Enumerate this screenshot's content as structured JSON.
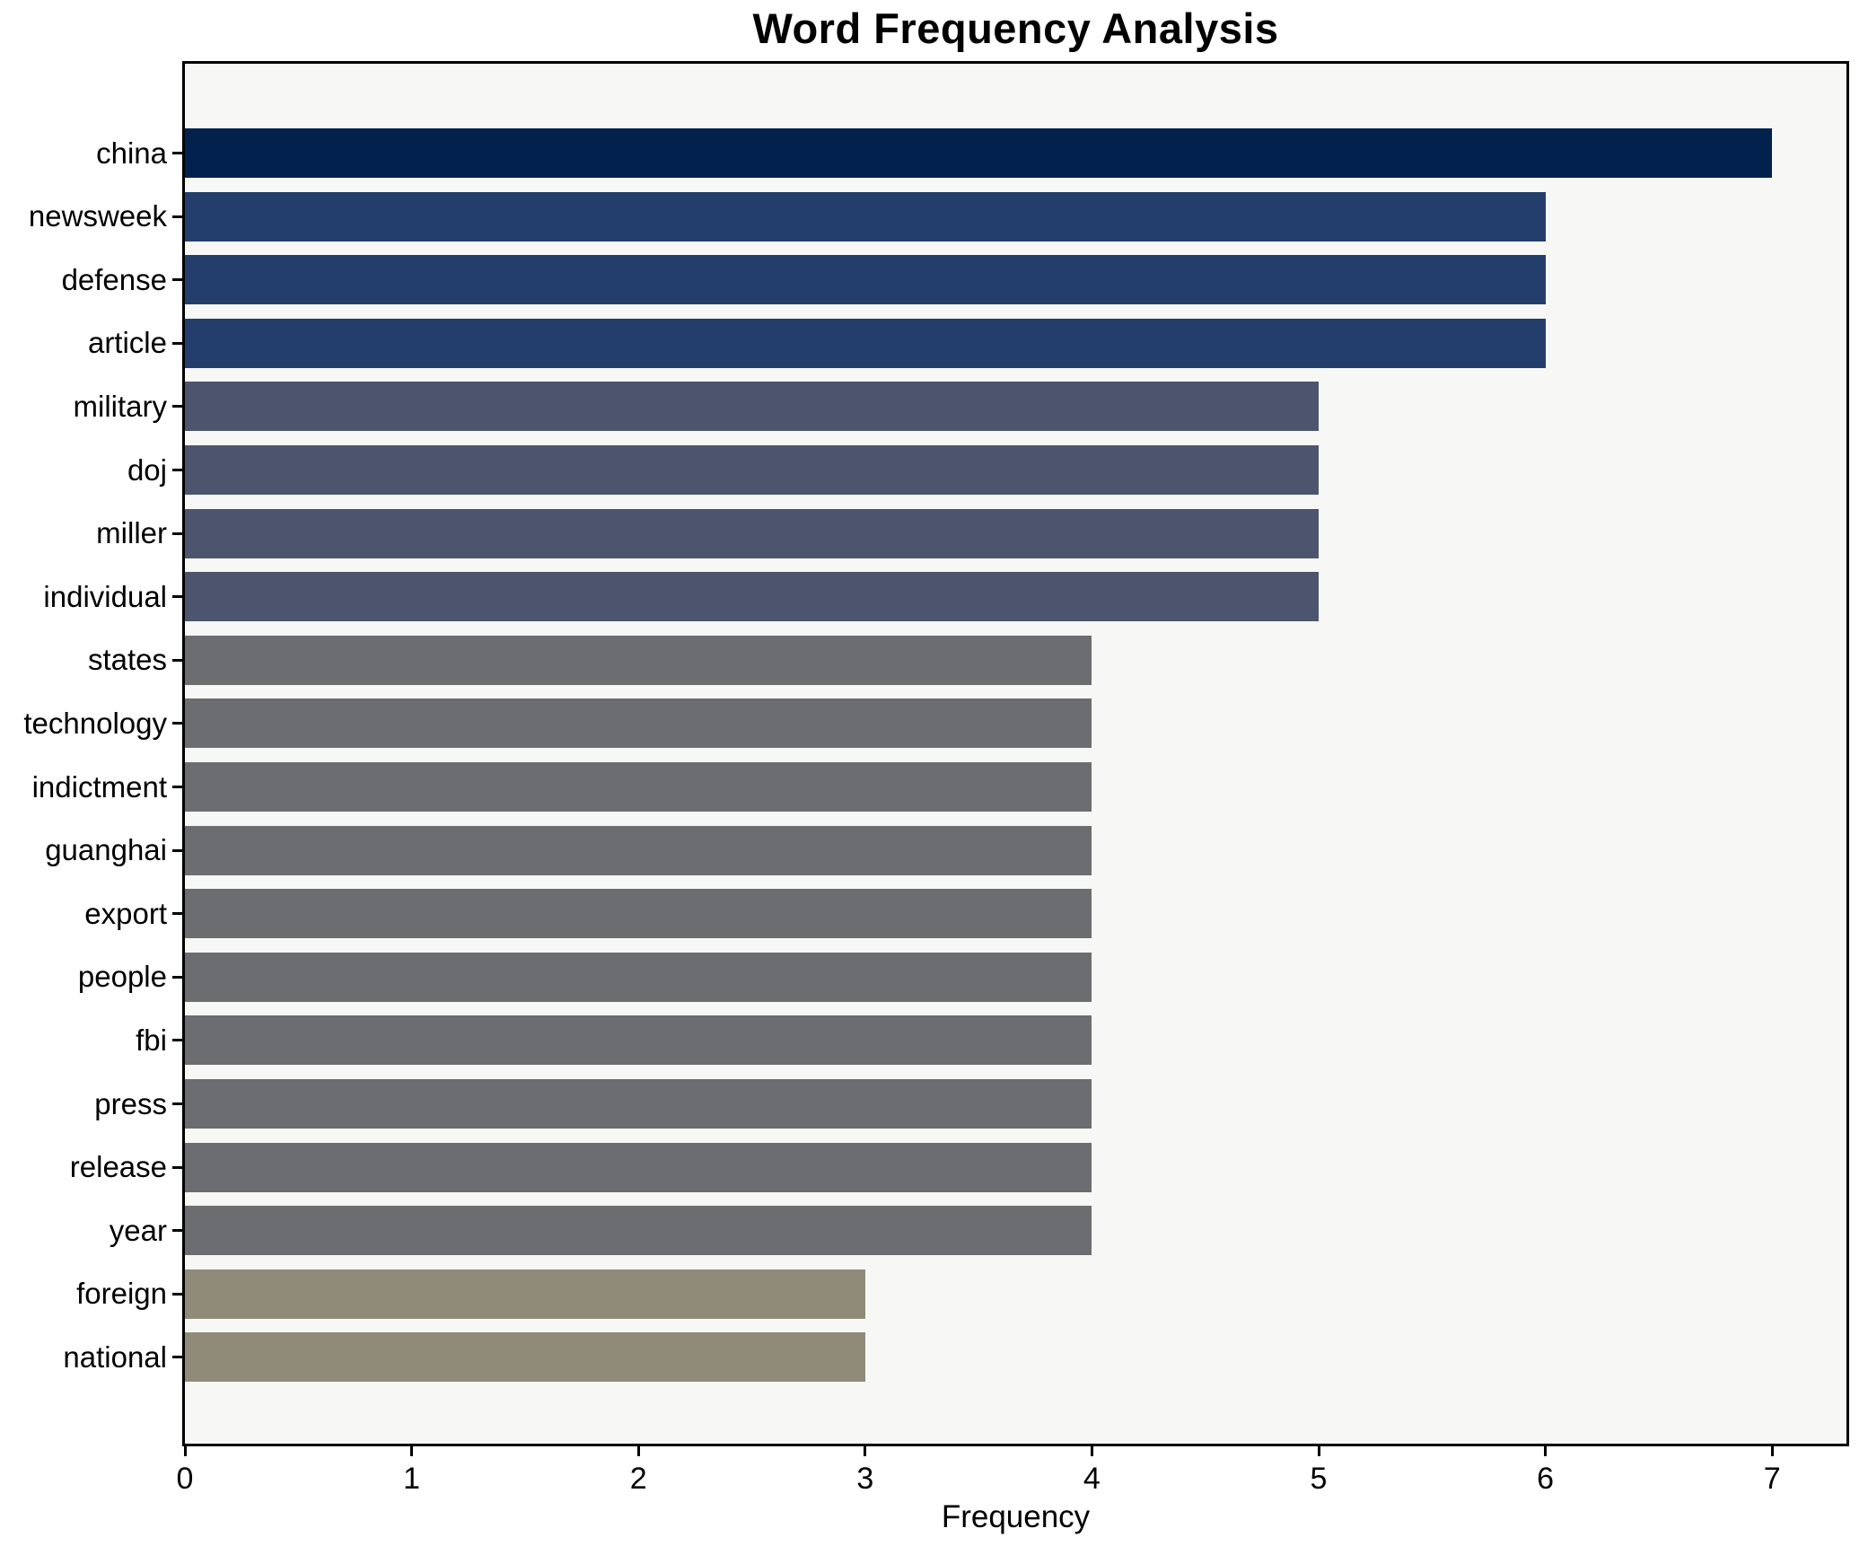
{
  "chart_data": {
    "type": "bar",
    "orientation": "horizontal",
    "title": "Word Frequency Analysis",
    "xlabel": "Frequency",
    "ylabel": "",
    "categories": [
      "china",
      "newsweek",
      "defense",
      "article",
      "military",
      "doj",
      "miller",
      "individual",
      "states",
      "technology",
      "indictment",
      "guanghai",
      "export",
      "people",
      "fbi",
      "press",
      "release",
      "year",
      "foreign",
      "national"
    ],
    "values": [
      7,
      6,
      6,
      6,
      5,
      5,
      5,
      5,
      4,
      4,
      4,
      4,
      4,
      4,
      4,
      4,
      4,
      4,
      3,
      3
    ],
    "bar_colors": [
      "#02214d",
      "#243e6c",
      "#243e6c",
      "#243e6c",
      "#4d556e",
      "#4d556e",
      "#4d556e",
      "#4d556e",
      "#6c6d70",
      "#6c6d70",
      "#6c6d70",
      "#6c6d70",
      "#6c6d70",
      "#6c6d70",
      "#6c6d70",
      "#6c6d70",
      "#6c6d70",
      "#6c6d70",
      "#908b79",
      "#908b79"
    ],
    "x_ticks": [
      0,
      1,
      2,
      3,
      4,
      5,
      6,
      7
    ],
    "xlim": [
      0,
      7.33
    ],
    "grid": false,
    "legend": null,
    "plot_background": "#f7f7f5",
    "figure_background": "#ffffff",
    "spine_color": "#000000",
    "text_color": "#000000"
  }
}
